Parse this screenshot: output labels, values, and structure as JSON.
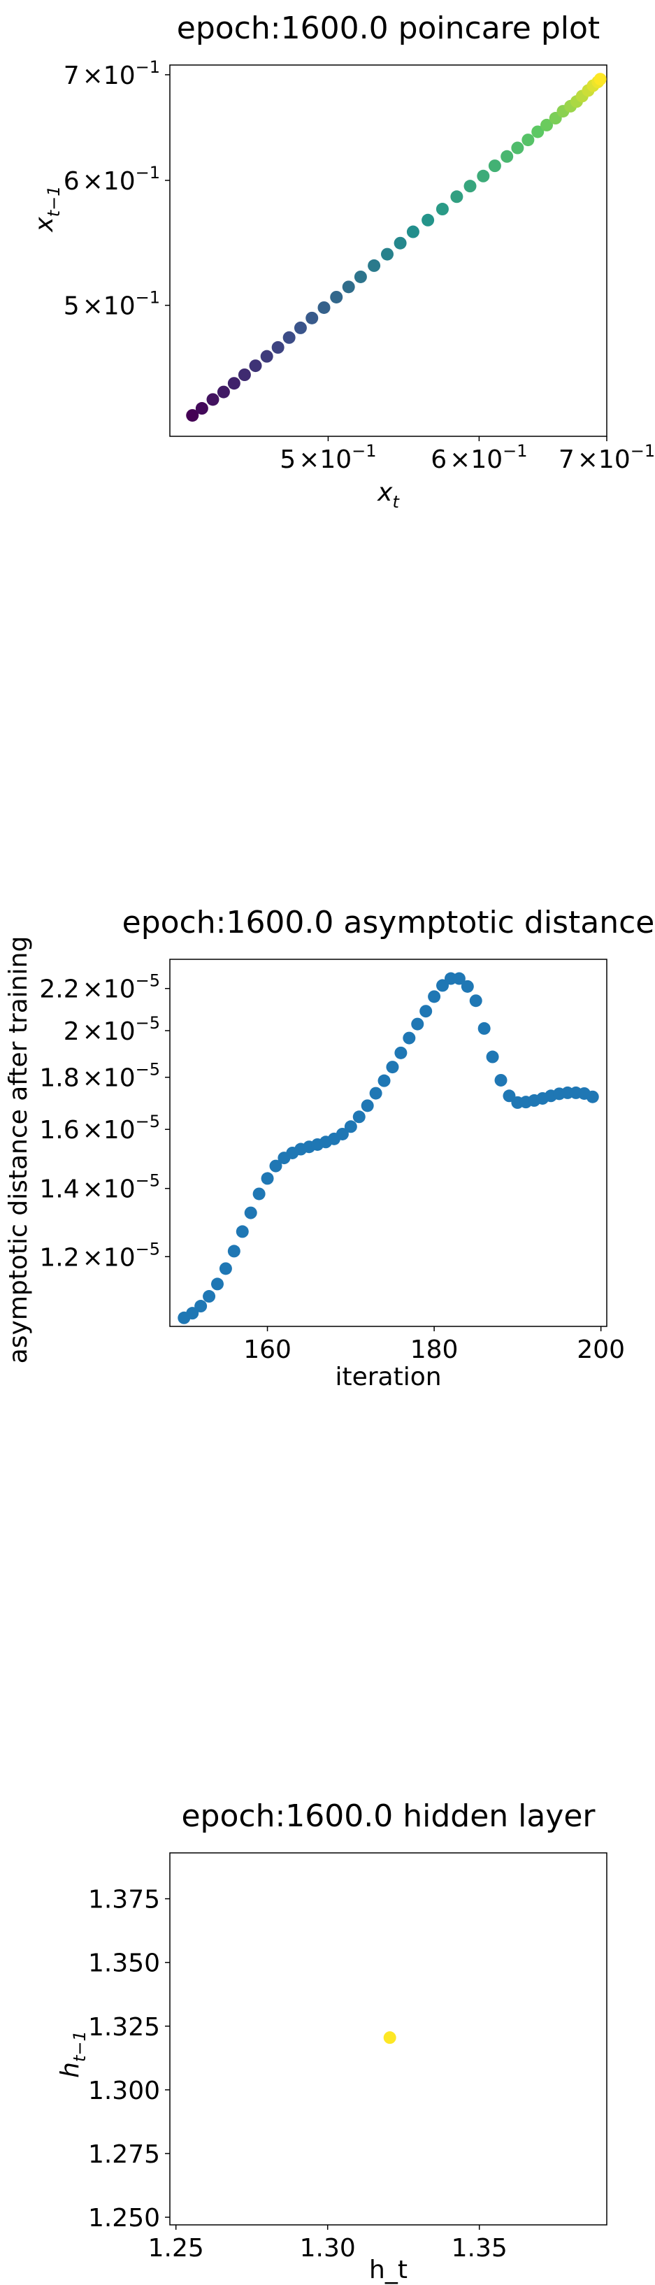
{
  "chart_data": [
    {
      "type": "scatter",
      "title": "epoch:1600.0 poincare plot",
      "xlabel": "x_t",
      "ylabel": "x_{t-1}",
      "xscale": "log",
      "yscale": "log",
      "xlim": [
        0.413,
        0.7
      ],
      "ylim": [
        0.413,
        0.71
      ],
      "xticks": [
        {
          "value": 0.5,
          "mant": "5",
          "exp": "-1"
        },
        {
          "value": 0.6,
          "mant": "6",
          "exp": "-1"
        },
        {
          "value": 0.7,
          "mant": "7",
          "exp": "-1"
        }
      ],
      "yticks": [
        {
          "value": 0.5,
          "mant": "5",
          "exp": "-1"
        },
        {
          "value": 0.6,
          "mant": "6",
          "exp": "-1"
        },
        {
          "value": 0.7,
          "mant": "7",
          "exp": "-1"
        }
      ],
      "colormap": "viridis",
      "grid": false,
      "legend": "none",
      "x": [
        0.4244,
        0.4293,
        0.435,
        0.4407,
        0.4463,
        0.452,
        0.458,
        0.4643,
        0.4706,
        0.477,
        0.4836,
        0.4903,
        0.4975,
        0.505,
        0.5125,
        0.52,
        0.5285,
        0.537,
        0.5455,
        0.554,
        0.564,
        0.574,
        0.584,
        0.5935,
        0.603,
        0.6115,
        0.6205,
        0.6285,
        0.6365,
        0.644,
        0.651,
        0.658,
        0.664,
        0.67,
        0.675,
        0.6795,
        0.6845,
        0.6885,
        0.6925,
        0.6945
      ],
      "y": [
        0.4258,
        0.4302,
        0.4358,
        0.4406,
        0.4462,
        0.4518,
        0.4578,
        0.4641,
        0.4702,
        0.477,
        0.4838,
        0.4908,
        0.4983,
        0.506,
        0.5136,
        0.5212,
        0.5298,
        0.5387,
        0.5475,
        0.5566,
        0.5662,
        0.5754,
        0.5859,
        0.595,
        0.6038,
        0.6129,
        0.6213,
        0.6291,
        0.6365,
        0.6441,
        0.6504,
        0.657,
        0.6637,
        0.6686,
        0.6732,
        0.6785,
        0.6841,
        0.6889,
        0.6927,
        0.6955
      ]
    },
    {
      "type": "scatter",
      "title": "epoch:1600.0 asymptotic distance",
      "xlabel": "iteration",
      "ylabel": "asymptotic distance after training",
      "yscale": "log",
      "xlim": [
        148.3,
        200.7
      ],
      "ylim": [
        1.025e-05,
        2.35e-05
      ],
      "xticks": [
        {
          "value": 160,
          "label": "160"
        },
        {
          "value": 180,
          "label": "180"
        },
        {
          "value": 200,
          "label": "200"
        }
      ],
      "yticks": [
        {
          "value": 1.2e-05,
          "mant": "1.2",
          "exp": "-5"
        },
        {
          "value": 1.4e-05,
          "mant": "1.4",
          "exp": "-5"
        },
        {
          "value": 1.6e-05,
          "mant": "1.6",
          "exp": "-5"
        },
        {
          "value": 1.8e-05,
          "mant": "1.8",
          "exp": "-5"
        },
        {
          "value": 2e-05,
          "mant": "2",
          "exp": "-5"
        },
        {
          "value": 2.2e-05,
          "mant": "2.2",
          "exp": "-5"
        }
      ],
      "color": "#1f77b4",
      "grid": false,
      "legend": "none",
      "x": [
        150,
        151,
        152,
        153,
        154,
        155,
        156,
        157,
        158,
        159,
        160,
        161,
        162,
        163,
        164,
        165,
        166,
        167,
        168,
        169,
        170,
        171,
        172,
        173,
        174,
        175,
        176,
        177,
        178,
        179,
        180,
        181,
        182,
        183,
        184,
        185,
        186,
        187,
        188,
        189,
        190,
        191,
        192,
        193,
        194,
        195,
        196,
        197,
        198,
        199
      ],
      "y": [
        1.045e-05,
        1.056e-05,
        1.073e-05,
        1.097e-05,
        1.128e-05,
        1.168e-05,
        1.215e-05,
        1.27e-05,
        1.325e-05,
        1.383e-05,
        1.432e-05,
        1.473e-05,
        1.5e-05,
        1.517e-05,
        1.53e-05,
        1.538e-05,
        1.546e-05,
        1.555e-05,
        1.566e-05,
        1.583e-05,
        1.61e-05,
        1.646e-05,
        1.688e-05,
        1.736e-05,
        1.786e-05,
        1.842e-05,
        1.902e-05,
        1.967e-05,
        2.03e-05,
        2.09e-05,
        2.16e-05,
        2.215e-05,
        2.25e-05,
        2.25e-05,
        2.21e-05,
        2.14e-05,
        2.01e-05,
        1.885e-05,
        1.788e-05,
        1.726e-05,
        1.7e-05,
        1.702e-05,
        1.708e-05,
        1.716e-05,
        1.726e-05,
        1.734e-05,
        1.738e-05,
        1.738e-05,
        1.735e-05,
        1.722e-05
      ]
    },
    {
      "type": "scatter",
      "title": "epoch:1600.0 hidden layer",
      "xlabel": "h_t",
      "ylabel": "h_{t-1}",
      "xlim": [
        1.248,
        1.392
      ],
      "ylim": [
        1.247,
        1.393
      ],
      "xticks": [
        {
          "value": 1.25,
          "label": "1.25"
        },
        {
          "value": 1.3,
          "label": "1.30"
        },
        {
          "value": 1.35,
          "label": "1.35"
        }
      ],
      "yticks": [
        {
          "value": 1.25,
          "label": "1.250"
        },
        {
          "value": 1.275,
          "label": "1.275"
        },
        {
          "value": 1.3,
          "label": "1.300"
        },
        {
          "value": 1.325,
          "label": "1.325"
        },
        {
          "value": 1.35,
          "label": "1.350"
        },
        {
          "value": 1.375,
          "label": "1.375"
        }
      ],
      "color": "#fde725",
      "grid": false,
      "legend": "none",
      "x": [
        1.3205
      ],
      "y": [
        1.3205
      ]
    }
  ]
}
